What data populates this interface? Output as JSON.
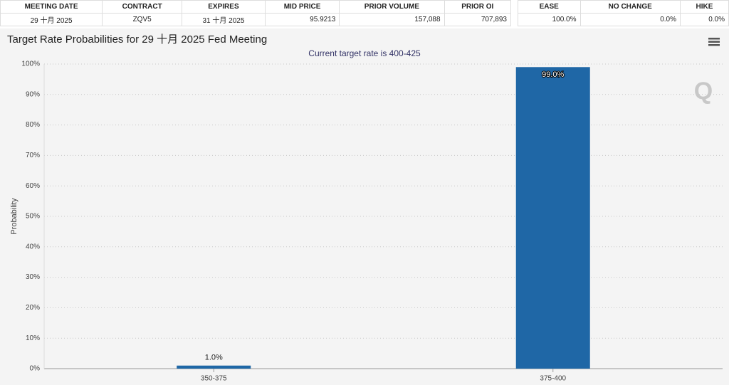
{
  "tables": [
    {
      "header": [
        "MEETING DATE",
        "CONTRACT",
        "EXPIRES",
        "MID PRICE",
        "PRIOR VOLUME",
        "PRIOR OI"
      ],
      "rows": [
        [
          "29 十月 2025",
          "ZQV5",
          "31 十月 2025",
          "95.9213",
          "157,088",
          "707,893"
        ]
      ]
    },
    {
      "header": [
        "EASE",
        "NO CHANGE",
        "HIKE"
      ],
      "rows": [
        [
          "100.0%",
          "0.0%",
          "0.0%"
        ]
      ]
    }
  ],
  "chart_data": {
    "type": "bar",
    "title": "Target Rate Probabilities for 29 十月 2025 Fed Meeting",
    "subtitle": "Current target rate is 400-425",
    "y_label": "Probability",
    "categories": [
      "350-375",
      "375-400"
    ],
    "values": [
      1.0,
      99.0
    ],
    "value_labels": [
      "1.0%",
      "99.0%"
    ],
    "color": "#1f67a6",
    "ylim": [
      0,
      100
    ],
    "yticks": [
      {
        "value": 0,
        "label": "0%"
      },
      {
        "value": 10,
        "label": "10%"
      },
      {
        "value": 20,
        "label": "20%"
      },
      {
        "value": 30,
        "label": "30%"
      },
      {
        "value": 40,
        "label": "40%"
      },
      {
        "value": 50,
        "label": "50%"
      },
      {
        "value": 60,
        "label": "60%"
      },
      {
        "value": 70,
        "label": "70%"
      },
      {
        "value": 80,
        "label": "80%"
      },
      {
        "value": 90,
        "label": "90%"
      },
      {
        "value": 100,
        "label": "100%"
      }
    ],
    "grid": true
  }
}
